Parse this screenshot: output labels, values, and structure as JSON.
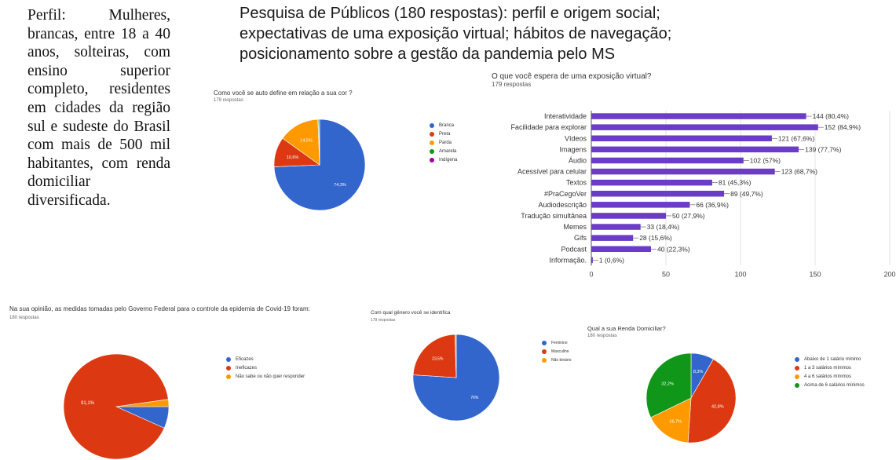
{
  "perfil_text": "Perfil: Mulheres, brancas, entre 18 a 40 anos, solteiras, com ensino superior completo, residentes em cidades da região sul e sudeste do Brasil com mais de 500 mil habitantes, com renda domiciliar diversificada.",
  "headline": "Pesquisa de Públicos (180 respostas): perfil e origem social; expectativas de uma exposição virtual; hábitos de navegação; posicionamento sobre a gestão da pandemia pelo MS",
  "chart_data": [
    {
      "type": "pie",
      "title": "Como você se auto define em relação a sua cor ?",
      "subtitle": "179 respostas",
      "labels": [
        "Branca",
        "Preta",
        "Parda",
        "Amarela",
        "Indígena"
      ],
      "values": [
        74.3,
        10.6,
        14.5,
        0.3,
        0.3
      ],
      "slice_labels": [
        "74,3%",
        "10,6%",
        "14,5%",
        "",
        ""
      ],
      "colors": [
        "#3366cc",
        "#dc3912",
        "#ff9900",
        "#109618",
        "#990099"
      ],
      "legend_position": "right"
    },
    {
      "type": "bar",
      "orientation": "horizontal",
      "title": "O que você espera de uma exposição virtual?",
      "subtitle": "179 respostas",
      "categories": [
        "Interatividade",
        "Facilidade para explorar",
        "Vídeos",
        "Imagens",
        "Áudio",
        "Acessível para celular",
        "Textos",
        "#PraCegoVer",
        "Audiodescrição",
        "Tradução simultânea",
        "Memes",
        "Gifs",
        "Podcast",
        "Informação."
      ],
      "values": [
        144,
        152,
        121,
        139,
        102,
        123,
        81,
        89,
        66,
        50,
        33,
        28,
        40,
        1
      ],
      "value_labels": [
        "144 (80,4%)",
        "152 (84,9%)",
        "121 (67,6%)",
        "139 (77,7%)",
        "102 (57%)",
        "123 (68,7%)",
        "81 (45,3%)",
        "89 (49,7%)",
        "66 (36,9%)",
        "50 (27,9%)",
        "33 (18,4%)",
        "28 (15,6%)",
        "40 (22,3%)",
        "1 (0,6%)"
      ],
      "xlim": [
        0,
        200
      ],
      "xticks": [
        "0",
        "50",
        "100",
        "150",
        "200"
      ],
      "color": "#6a3cc8",
      "grid": true
    },
    {
      "type": "pie",
      "title": "Na sua opinião, as medidas tomadas pelo Governo Federal para o controle da epidemia de Covid-19 foram:",
      "subtitle": "180 respostas",
      "labels": [
        "Eficazes",
        "Ineficazes",
        "Não sabe ou não quer responder"
      ],
      "values": [
        6.7,
        91.1,
        2.2
      ],
      "slice_labels": [
        "",
        "91,1%",
        ""
      ],
      "colors": [
        "#3366cc",
        "#dc3912",
        "#ff9900"
      ],
      "legend_position": "right"
    },
    {
      "type": "pie",
      "title": "Com qual gênero você se identifica",
      "subtitle": "179 respostas",
      "labels": [
        "Feminino",
        "Masculino",
        "Não binário"
      ],
      "values": [
        76,
        23.5,
        0.5
      ],
      "slice_labels": [
        "76%",
        "23,5%",
        ""
      ],
      "colors": [
        "#3366cc",
        "#dc3912",
        "#ff9900"
      ],
      "legend_position": "right"
    },
    {
      "type": "pie",
      "title": "Qual a sua Renda Domiciliar?",
      "subtitle": "180 respostas",
      "labels": [
        "Abaixo de 1 salário mínimo",
        "1 a 3 salários mínimos",
        "4 a 6 salários mínimos",
        "Acima de 6 salários mínimos"
      ],
      "values": [
        8.3,
        42.8,
        16.7,
        32.2
      ],
      "slice_labels": [
        "8,3%",
        "42,8%",
        "16,7%",
        "32,2%"
      ],
      "colors": [
        "#3366cc",
        "#dc3912",
        "#ff9900",
        "#109618"
      ],
      "legend_position": "right"
    }
  ]
}
